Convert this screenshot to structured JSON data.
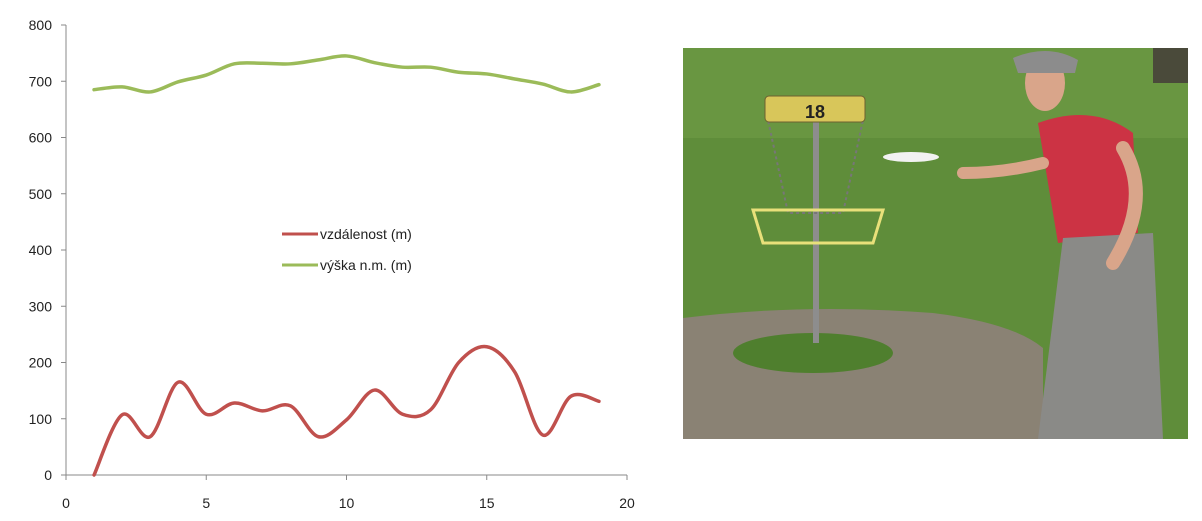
{
  "chart_data": {
    "type": "line",
    "smooth": true,
    "x": [
      1,
      2,
      3,
      4,
      5,
      6,
      7,
      8,
      9,
      10,
      11,
      12,
      13,
      14,
      15,
      16,
      17,
      18,
      19
    ],
    "series": [
      {
        "name": "vzdálenost (m)",
        "color": "#C0504D",
        "values": [
          0,
          107,
          68,
          165,
          108,
          128,
          114,
          123,
          68,
          98,
          151,
          108,
          116,
          200,
          228,
          183,
          71,
          140,
          131
        ]
      },
      {
        "name": "výška n.m. (m)",
        "color": "#9BBB59",
        "values": [
          685,
          690,
          681,
          699,
          711,
          731,
          732,
          731,
          738,
          745,
          733,
          725,
          725,
          716,
          713,
          704,
          695,
          681,
          694
        ]
      }
    ],
    "xlim": [
      0,
      20
    ],
    "ylim": [
      0,
      800
    ],
    "xticks": [
      "0",
      "5",
      "10",
      "15",
      "20"
    ],
    "yticks": [
      "0",
      "100",
      "200",
      "300",
      "400",
      "500",
      "600",
      "700",
      "800"
    ],
    "grid": false,
    "legend": "center",
    "title": "",
    "xlabel": "",
    "ylabel": ""
  },
  "photo": {
    "basket_number": "18"
  }
}
